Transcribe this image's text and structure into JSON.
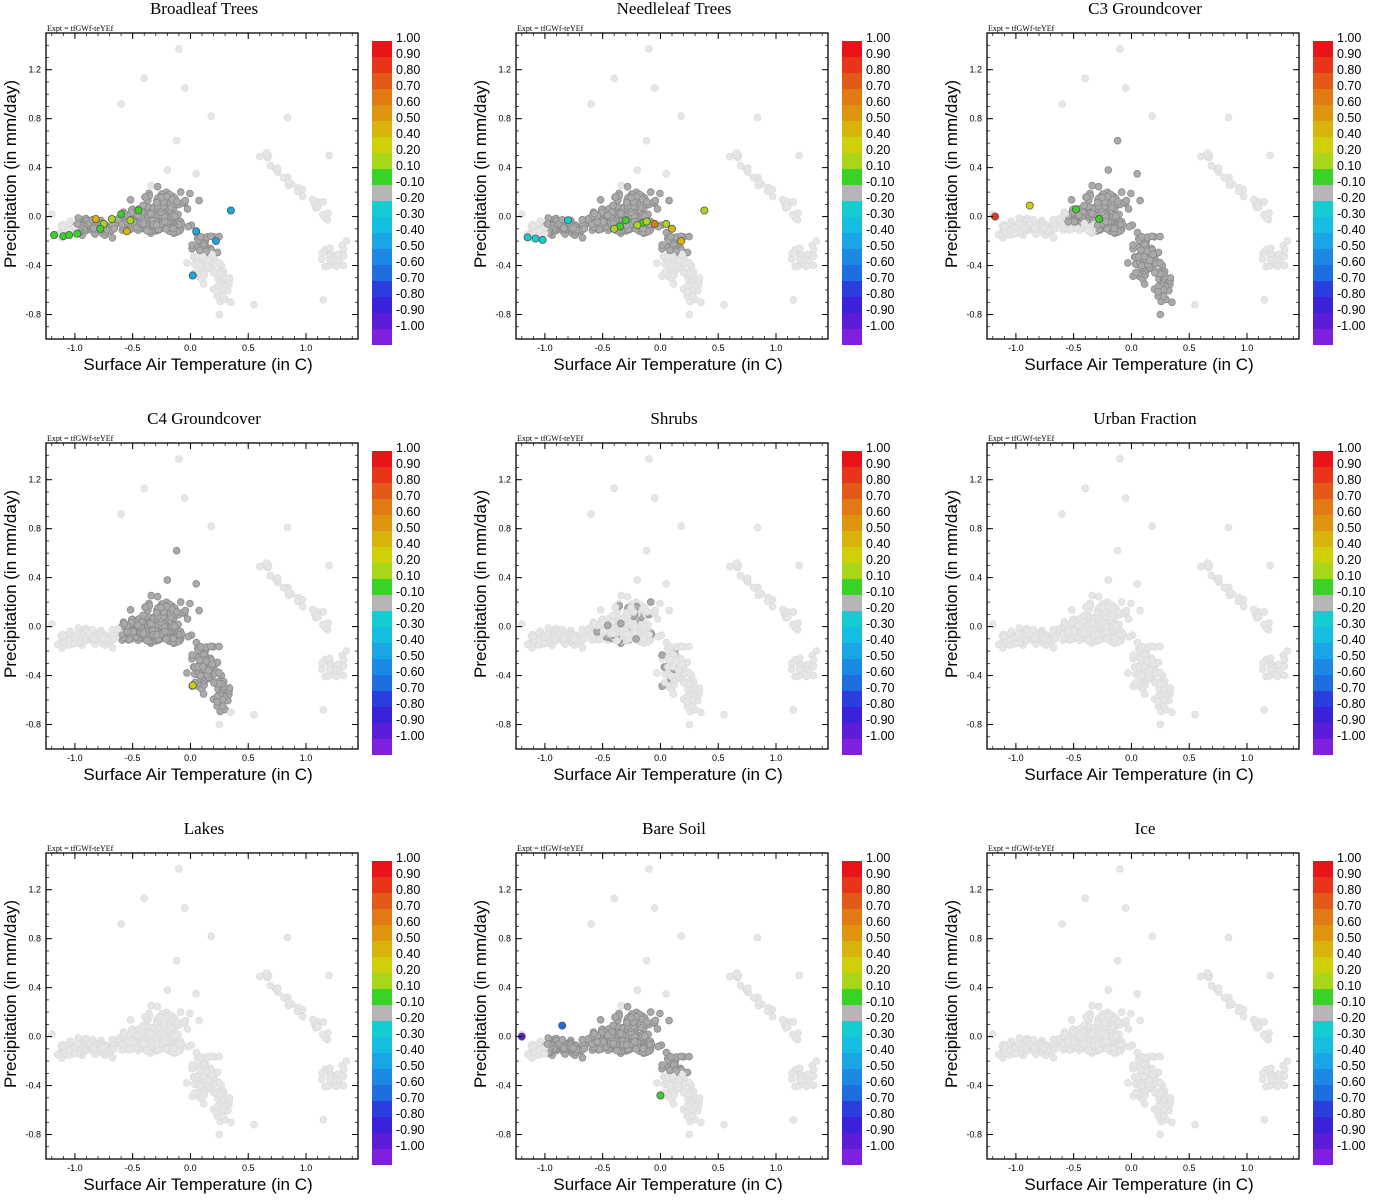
{
  "figure": {
    "expt_label": "Expt = tfGWf-teYEf",
    "xlabel": "Surface Air Temperature (in C)",
    "ylabel": "Precipitation (in mm/day)",
    "xlim": [
      -1.25,
      1.45
    ],
    "ylim": [
      -1.0,
      1.5
    ],
    "xticks": [
      -1.0,
      -0.5,
      0.0,
      0.5,
      1.0
    ],
    "xtick_labels": [
      "-1.0",
      "-0.5",
      "0.0",
      "0.5",
      "1.0"
    ],
    "yticks": [
      -0.8,
      -0.4,
      0.0,
      0.4,
      0.8,
      1.2
    ],
    "ytick_labels": [
      "-0.8",
      "-0.4",
      "0.0",
      "0.4",
      "0.8",
      "1.2"
    ],
    "colors": {
      "masked_points": "#e6e6e6",
      "neutral_points": "#aaaaaa",
      "point_outline": "#8a8a8a"
    },
    "colorbar": {
      "labels": [
        "1.00",
        "0.90",
        "0.80",
        "0.70",
        "0.60",
        "0.50",
        "0.40",
        "0.20",
        "0.10",
        "-0.10",
        "-0.20",
        "-0.30",
        "-0.40",
        "-0.50",
        "-0.60",
        "-0.70",
        "-0.80",
        "-0.90",
        "-1.00"
      ],
      "colors": [
        "#e8141a",
        "#e8351a",
        "#e35a18",
        "#e17a12",
        "#df9410",
        "#d8b30c",
        "#cfcf0a",
        "#a8d618",
        "#3ad226",
        "#b6b6b6",
        "#14cdd0",
        "#15bde0",
        "#1aa6e6",
        "#1c8ae4",
        "#1e6ee0",
        "#2a3ede",
        "#3a22da",
        "#5c1cd8",
        "#7f1fe0"
      ]
    }
  },
  "chart_data": [
    {
      "type": "scatter",
      "title": "Broadleaf Trees",
      "base_cloud": "masked",
      "neutral_region": "central",
      "highlighted": [
        {
          "x": -1.18,
          "y": -0.15,
          "v": 0.15
        },
        {
          "x": -1.1,
          "y": -0.16,
          "v": 0.15
        },
        {
          "x": -1.05,
          "y": -0.15,
          "v": 0.15
        },
        {
          "x": -0.98,
          "y": -0.14,
          "v": 0.15
        },
        {
          "x": -0.82,
          "y": -0.02,
          "v": 0.45
        },
        {
          "x": -0.75,
          "y": -0.06,
          "v": 0.25
        },
        {
          "x": -0.68,
          "y": -0.02,
          "v": 0.3
        },
        {
          "x": -0.6,
          "y": 0.02,
          "v": 0.15
        },
        {
          "x": -0.52,
          "y": -0.03,
          "v": 0.25
        },
        {
          "x": -0.45,
          "y": 0.05,
          "v": 0.15
        },
        {
          "x": -0.78,
          "y": -0.1,
          "v": 0.15
        },
        {
          "x": -0.55,
          "y": -0.12,
          "v": 0.45
        },
        {
          "x": 0.22,
          "y": -0.2,
          "v": -0.45
        },
        {
          "x": 0.35,
          "y": 0.05,
          "v": -0.45
        },
        {
          "x": 0.05,
          "y": -0.12,
          "v": -0.45
        },
        {
          "x": 0.02,
          "y": -0.48,
          "v": -0.45
        }
      ]
    },
    {
      "type": "scatter",
      "title": "Needleleaf Trees",
      "base_cloud": "masked",
      "neutral_region": "central",
      "highlighted": [
        {
          "x": -1.15,
          "y": -0.17,
          "v": -0.25
        },
        {
          "x": -1.08,
          "y": -0.18,
          "v": -0.25
        },
        {
          "x": -1.02,
          "y": -0.19,
          "v": -0.25
        },
        {
          "x": -0.8,
          "y": -0.03,
          "v": -0.25
        },
        {
          "x": -0.15,
          "y": -0.05,
          "v": 0.15
        },
        {
          "x": -0.12,
          "y": -0.04,
          "v": 0.25
        },
        {
          "x": -0.2,
          "y": -0.07,
          "v": 0.3
        },
        {
          "x": -0.3,
          "y": -0.03,
          "v": 0.15
        },
        {
          "x": -0.05,
          "y": -0.06,
          "v": 0.65
        },
        {
          "x": 0.05,
          "y": -0.06,
          "v": 0.25
        },
        {
          "x": 0.1,
          "y": -0.1,
          "v": 0.45
        },
        {
          "x": 0.18,
          "y": -0.2,
          "v": 0.45
        },
        {
          "x": 0.38,
          "y": 0.05,
          "v": 0.25
        },
        {
          "x": -0.35,
          "y": -0.08,
          "v": 0.15
        },
        {
          "x": -0.4,
          "y": -0.1,
          "v": 0.25
        }
      ]
    },
    {
      "type": "scatter",
      "title": "C3 Groundcover",
      "base_cloud": "masked",
      "neutral_region": "right",
      "highlighted": [
        {
          "x": -1.18,
          "y": 0.0,
          "v": 0.95
        },
        {
          "x": -0.88,
          "y": 0.09,
          "v": 0.4
        },
        {
          "x": -0.48,
          "y": 0.06,
          "v": 0.15
        },
        {
          "x": -0.28,
          "y": -0.02,
          "v": 0.15
        }
      ]
    },
    {
      "type": "scatter",
      "title": "C4 Groundcover",
      "base_cloud": "masked",
      "neutral_region": "center_right",
      "highlighted": [
        {
          "x": 0.02,
          "y": -0.48,
          "v": 0.4
        }
      ]
    },
    {
      "type": "scatter",
      "title": "Shrubs",
      "base_cloud": "masked",
      "neutral_region": "sparse",
      "highlighted": []
    },
    {
      "type": "scatter",
      "title": "Urban Fraction",
      "base_cloud": "masked",
      "neutral_region": "none",
      "highlighted": []
    },
    {
      "type": "scatter",
      "title": "Lakes",
      "base_cloud": "masked",
      "neutral_region": "none",
      "highlighted": []
    },
    {
      "type": "scatter",
      "title": "Bare Soil",
      "base_cloud": "masked",
      "neutral_region": "central",
      "highlighted": [
        {
          "x": -1.2,
          "y": 0.0,
          "v": -0.9
        },
        {
          "x": -0.85,
          "y": 0.09,
          "v": -0.6
        },
        {
          "x": 0.0,
          "y": -0.48,
          "v": 0.15
        }
      ]
    },
    {
      "type": "scatter",
      "title": "Ice",
      "base_cloud": "masked",
      "neutral_region": "none",
      "highlighted": []
    }
  ]
}
